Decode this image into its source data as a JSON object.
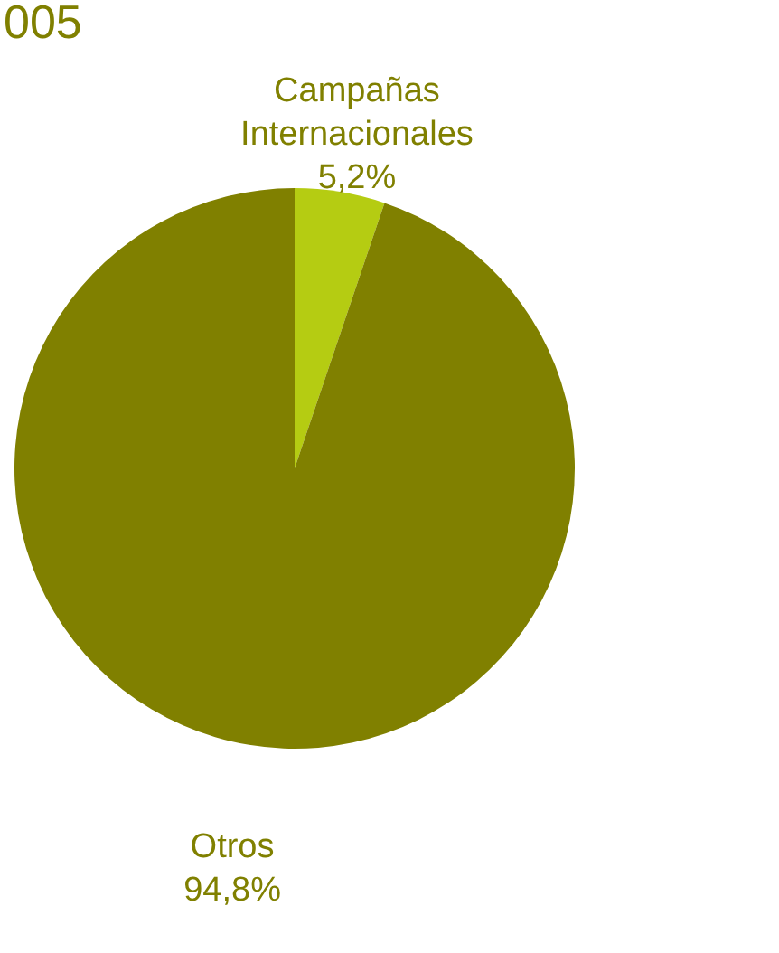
{
  "chart_data": {
    "type": "pie",
    "title": "005",
    "categories": [
      "Campañas Internacionales",
      "Otros"
    ],
    "values": [
      5.2,
      94.8
    ],
    "value_labels": [
      "5,2%",
      "94,8%"
    ],
    "colors": [
      "#b5cc12",
      "#808000"
    ]
  }
}
